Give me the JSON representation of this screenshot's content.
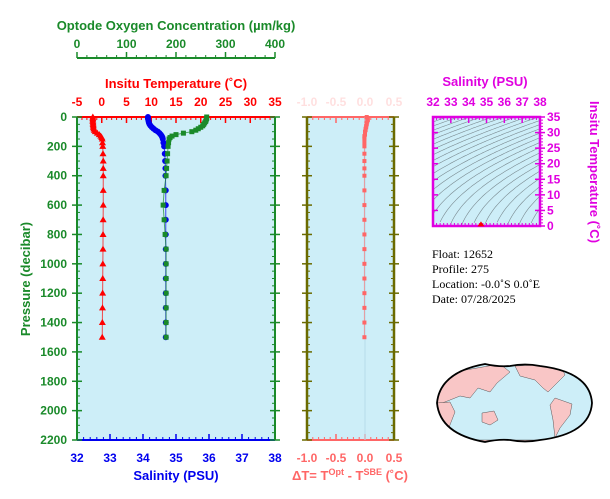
{
  "colors": {
    "oxygen": "#1a8a2a",
    "temperature": "#ff0000",
    "salinity": "#0000ee",
    "delta_t": "#ff6666",
    "ts_axis": "#e000e0",
    "pressure_axis": "#1a8a2a",
    "delta_axis_frame": "#6b6b00",
    "plot_bg": "#cdeef8",
    "land": "#f9c6c6"
  },
  "chart_data": [
    {
      "type": "line",
      "title": "",
      "ylabel": "Pressure (decibar)",
      "ylim": [
        2200,
        0
      ],
      "yticks": [
        "0",
        "200",
        "400",
        "600",
        "800",
        "1000",
        "1200",
        "1400",
        "1600",
        "1800",
        "2000",
        "2200"
      ],
      "x_axes": {
        "oxygen": {
          "label": "Optode Oxygen Concentration (µm/kg)",
          "range": [
            0,
            400
          ],
          "ticks": [
            "0",
            "100",
            "200",
            "300",
            "400"
          ]
        },
        "temperature": {
          "label": "Insitu Temperature (˚C)",
          "range": [
            -5,
            35
          ],
          "ticks": [
            "-5",
            "0",
            "5",
            "10",
            "15",
            "20",
            "25",
            "30",
            "35"
          ]
        },
        "salinity": {
          "label": "Salinity (PSU)",
          "range": [
            32,
            38
          ],
          "ticks": [
            "32",
            "33",
            "34",
            "35",
            "36",
            "37",
            "38"
          ]
        }
      },
      "pressure": [
        0,
        10,
        20,
        30,
        40,
        50,
        60,
        70,
        80,
        90,
        100,
        110,
        120,
        130,
        140,
        150,
        175,
        200,
        250,
        300,
        350,
        400,
        500,
        600,
        700,
        800,
        900,
        1000,
        1100,
        1200,
        1300,
        1400,
        1500
      ],
      "series": [
        {
          "key": "temperature",
          "marker": "triangle",
          "values": [
            -1.8,
            -1.8,
            -1.8,
            -1.8,
            -1.75,
            -1.75,
            -1.7,
            -1.7,
            -1.6,
            -1.5,
            -1.3,
            -0.9,
            -0.5,
            -0.2,
            0,
            0.1,
            0.15,
            0.2,
            0.25,
            0.3,
            0.3,
            0.3,
            0.3,
            0.3,
            0.28,
            0.26,
            0.25,
            0.22,
            0.2,
            0.18,
            0.15,
            0.12,
            0.1
          ]
        },
        {
          "key": "salinity",
          "marker": "circle",
          "values": [
            34.15,
            34.15,
            34.16,
            34.17,
            34.18,
            34.2,
            34.23,
            34.27,
            34.32,
            34.38,
            34.45,
            34.5,
            34.54,
            34.57,
            34.59,
            34.6,
            34.62,
            34.64,
            34.66,
            34.67,
            34.68,
            34.68,
            34.69,
            34.69,
            34.69,
            34.69,
            34.69,
            34.69,
            34.69,
            34.69,
            34.69,
            34.69,
            34.69
          ]
        },
        {
          "key": "oxygen",
          "marker": "square",
          "values": [
            262,
            262,
            261,
            260,
            258,
            256,
            254,
            250,
            245,
            240,
            232,
            215,
            200,
            192,
            188,
            186,
            185,
            184,
            183,
            182,
            181,
            180,
            176,
            174,
            176,
            178,
            180,
            180,
            180,
            180,
            180,
            180,
            180
          ]
        }
      ]
    },
    {
      "type": "line",
      "xlabel": "ΔT= T^Opt - T^SBE (˚C)",
      "xlabel_parts": {
        "prefix": "ΔT= T",
        "sup1": "Opt",
        "mid": " - T",
        "sup2": "SBE",
        "suffix": " (˚C)"
      },
      "xlim": [
        -1.0,
        0.5
      ],
      "xticks": [
        "-1.0",
        "-0.5",
        "0.0",
        "0.5"
      ],
      "ylim": [
        2200,
        0
      ],
      "values": [
        0.03,
        0.04,
        0.05,
        0.04,
        0.03,
        0.03,
        0.02,
        0.02,
        0.01,
        0.01,
        0.0,
        0.0,
        0.0,
        -0.01,
        -0.01,
        -0.01,
        -0.01,
        -0.01,
        -0.01,
        -0.01,
        -0.01,
        -0.01,
        -0.01,
        -0.01,
        -0.01,
        -0.01,
        -0.01,
        -0.01,
        -0.01,
        -0.01,
        -0.01,
        -0.01,
        -0.01
      ]
    },
    {
      "type": "scatter",
      "xlabel": "Salinity (PSU)",
      "ylabel": "Insitu Temperature (˚C)",
      "xlim": [
        32,
        38
      ],
      "ylim": [
        0,
        35
      ],
      "xticks": [
        "32",
        "33",
        "34",
        "35",
        "36",
        "37",
        "38"
      ],
      "yticks": [
        "0",
        "5",
        "10",
        "15",
        "20",
        "25",
        "30",
        "35"
      ],
      "density_contours": true,
      "points": [
        {
          "x": 34.69,
          "y": 0.2
        }
      ]
    }
  ],
  "info": {
    "float": "Float:  12652",
    "profile": "Profile:  275",
    "location": "Location:  -0.0˚S    0.0˚E",
    "date": "Date:  07/28/2025"
  }
}
